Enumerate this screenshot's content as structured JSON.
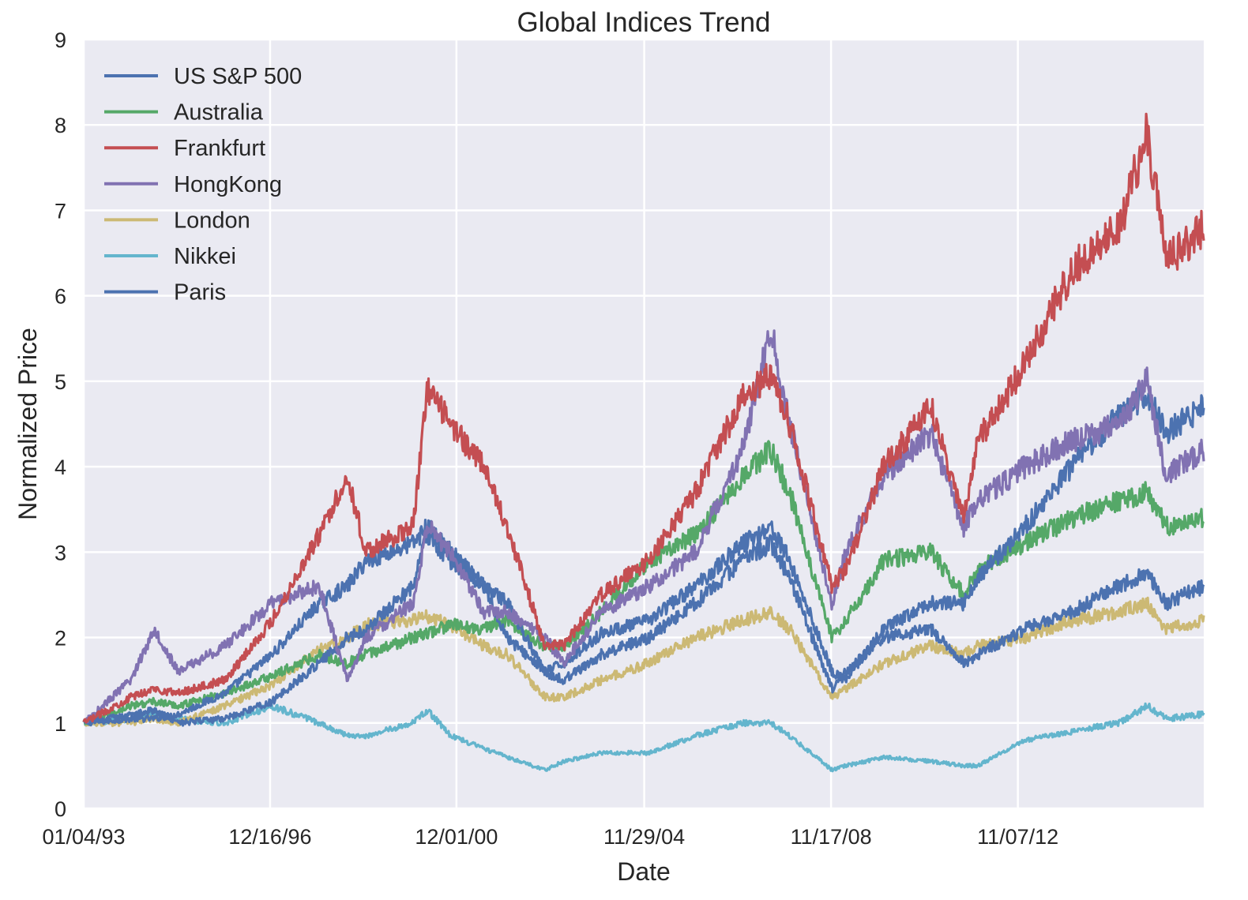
{
  "chart_data": {
    "type": "line",
    "title": "Global Indices Trend",
    "xlabel": "Date",
    "ylabel": "Normalized Price",
    "x_ticks": [
      "01/04/93",
      "12/16/96",
      "12/01/00",
      "11/29/04",
      "11/17/08",
      "11/07/12"
    ],
    "y_ticks": [
      "0",
      "1",
      "2",
      "3",
      "4",
      "5",
      "6",
      "7",
      "8",
      "9"
    ],
    "ylim": [
      0,
      9
    ],
    "grid": true,
    "legend_position": "top-left",
    "x": [
      1993.0,
      1994.0,
      1994.5,
      1995.0,
      1996.0,
      1997.0,
      1998.0,
      1998.6,
      1999.0,
      2000.0,
      2000.3,
      2000.8,
      2001.5,
      2002.0,
      2002.8,
      2003.2,
      2004.0,
      2005.0,
      2006.0,
      2007.0,
      2007.6,
      2008.0,
      2008.9,
      2009.2,
      2010.0,
      2011.0,
      2011.7,
      2012.0,
      2013.0,
      2014.0,
      2015.0,
      2015.6,
      2016.0,
      2016.8
    ],
    "series": [
      {
        "name": "US S&P 500",
        "color": "#4c72b0",
        "values": [
          1.0,
          1.05,
          1.05,
          1.1,
          1.35,
          1.8,
          2.4,
          2.6,
          2.9,
          3.1,
          3.3,
          3.0,
          2.6,
          2.0,
          1.6,
          1.7,
          2.05,
          2.2,
          2.6,
          3.1,
          3.3,
          2.9,
          1.6,
          1.5,
          2.1,
          2.4,
          2.4,
          2.7,
          3.3,
          4.0,
          4.6,
          4.85,
          4.4,
          4.7
        ]
      },
      {
        "name": "Australia",
        "color": "#55a868",
        "values": [
          1.0,
          1.2,
          1.25,
          1.2,
          1.35,
          1.55,
          1.8,
          1.7,
          1.8,
          2.0,
          2.05,
          2.15,
          2.1,
          2.2,
          1.9,
          1.9,
          2.3,
          2.9,
          3.2,
          3.9,
          4.2,
          3.7,
          2.0,
          2.2,
          2.9,
          3.0,
          2.5,
          2.8,
          3.1,
          3.4,
          3.6,
          3.7,
          3.3,
          3.4
        ]
      },
      {
        "name": "Frankfurt",
        "color": "#c44e52",
        "values": [
          1.0,
          1.3,
          1.4,
          1.35,
          1.5,
          2.2,
          3.2,
          3.9,
          3.0,
          3.3,
          4.9,
          4.5,
          4.0,
          3.3,
          1.9,
          1.9,
          2.5,
          2.9,
          3.7,
          4.8,
          5.1,
          4.5,
          2.6,
          2.8,
          4.0,
          4.7,
          3.4,
          4.3,
          5.2,
          6.3,
          6.8,
          7.9,
          6.4,
          6.8
        ]
      },
      {
        "name": "HongKong",
        "color": "#8172b2",
        "values": [
          1.0,
          1.5,
          2.1,
          1.6,
          1.9,
          2.4,
          2.6,
          1.5,
          2.0,
          2.4,
          3.3,
          3.0,
          2.3,
          2.3,
          2.0,
          1.7,
          2.3,
          2.6,
          3.0,
          4.2,
          5.6,
          4.5,
          2.4,
          3.0,
          3.9,
          4.4,
          3.3,
          3.6,
          4.0,
          4.3,
          4.5,
          5.0,
          3.9,
          4.2
        ]
      },
      {
        "name": "London",
        "color": "#ccb974",
        "values": [
          1.0,
          1.0,
          1.05,
          1.0,
          1.2,
          1.45,
          1.85,
          2.0,
          2.15,
          2.2,
          2.25,
          2.15,
          1.9,
          1.8,
          1.3,
          1.3,
          1.5,
          1.7,
          2.0,
          2.2,
          2.3,
          2.1,
          1.3,
          1.4,
          1.7,
          1.9,
          1.8,
          1.9,
          2.0,
          2.2,
          2.3,
          2.4,
          2.1,
          2.2
        ]
      },
      {
        "name": "Nikkei",
        "color": "#64b5cd",
        "values": [
          1.0,
          1.05,
          1.1,
          1.05,
          1.0,
          1.2,
          1.0,
          0.85,
          0.85,
          1.0,
          1.15,
          0.85,
          0.7,
          0.6,
          0.45,
          0.55,
          0.65,
          0.65,
          0.85,
          1.0,
          1.0,
          0.85,
          0.45,
          0.5,
          0.6,
          0.55,
          0.5,
          0.5,
          0.8,
          0.9,
          1.0,
          1.2,
          1.05,
          1.1
        ]
      },
      {
        "name": "Paris",
        "color": "#4c72b0",
        "values": [
          1.0,
          1.1,
          1.15,
          1.0,
          1.05,
          1.25,
          1.7,
          2.0,
          2.1,
          2.6,
          3.2,
          2.9,
          2.6,
          2.4,
          1.6,
          1.5,
          1.8,
          2.0,
          2.4,
          2.9,
          3.1,
          2.7,
          1.4,
          1.6,
          2.0,
          2.1,
          1.7,
          1.8,
          2.1,
          2.3,
          2.6,
          2.75,
          2.4,
          2.6
        ]
      }
    ]
  }
}
